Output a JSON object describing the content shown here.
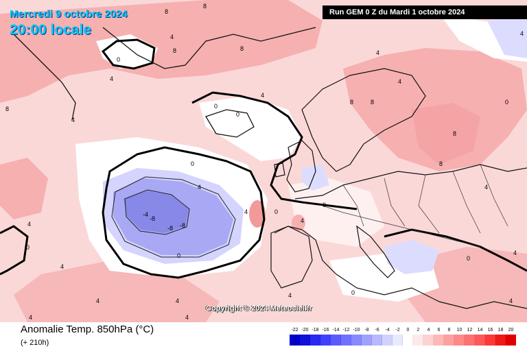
{
  "header": {
    "date": "Mercredi 9 octobre 2024",
    "time": "20:00 locale",
    "run": "Run GEM 0 Z du Mardi 1 octobre 2024"
  },
  "watermark": "Copyright © 2024 Meteociel.fr",
  "footer": {
    "title": "Anomalie Temp. 850hPa (°C)",
    "lead": "(+ 210h)"
  },
  "legend": {
    "ticks": [
      "-22",
      "-20",
      "-18",
      "-16",
      "-14",
      "-12",
      "-10",
      "-8",
      "-6",
      "-4",
      "-2",
      "0",
      "2",
      "4",
      "6",
      "8",
      "10",
      "12",
      "14",
      "16",
      "18",
      "20"
    ],
    "colors": [
      "#0000c8",
      "#1010dc",
      "#2828f0",
      "#4040ff",
      "#5a5aff",
      "#7070ff",
      "#8888ff",
      "#a0a0ff",
      "#b8b8ff",
      "#d2d2ff",
      "#e8e8ff",
      "#ffffff",
      "#ffe8e8",
      "#ffd2d2",
      "#ffb8b8",
      "#ffa0a0",
      "#ff8888",
      "#ff7070",
      "#ff5858",
      "#ff3838",
      "#f01818",
      "#e00000"
    ]
  },
  "contour_labels": [
    "8",
    "4",
    "0",
    "-4",
    "-8"
  ],
  "map_colors": {
    "warm_light": "#fbd8d8",
    "warm_medium": "#f6b0b0",
    "neutral": "#ffffff",
    "cold_light": "#d4d4ff",
    "cold_medium": "#a8a8f4",
    "cold_strong": "#8888e8"
  }
}
